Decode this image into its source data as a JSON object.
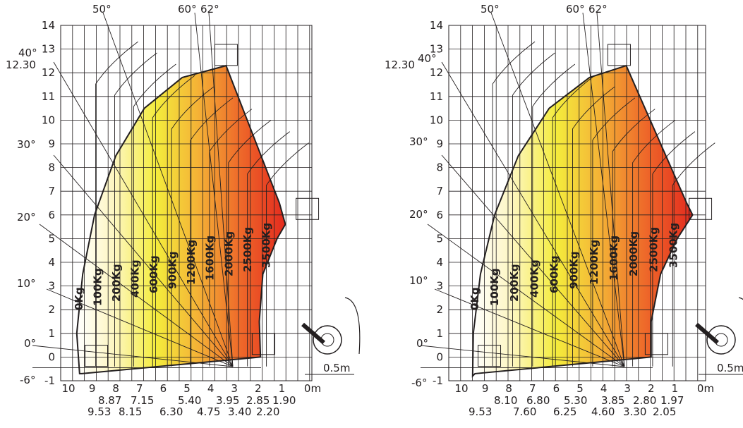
{
  "chart_data": [
    {
      "type": "load_chart",
      "title": "",
      "x_unit_label": "0m",
      "y_unit_label": "",
      "xlim": [
        0,
        10.8
      ],
      "ylim": [
        -1,
        14
      ],
      "x_ticks": [
        "10",
        "9",
        "8",
        "7",
        "6",
        "5",
        "4",
        "3",
        "2",
        "1"
      ],
      "y_ticks": [
        "14",
        "13",
        "12",
        "11",
        "10",
        "9",
        "8",
        "7",
        "6",
        "5",
        "4",
        "3",
        "2",
        "1",
        "0",
        "-1"
      ],
      "max_height_label": "12.30",
      "angle_labels": [
        "50°",
        "60°",
        "62°",
        "40°",
        "30°",
        "20°",
        "10°",
        "0°",
        "-6°"
      ],
      "scale_label": "0.5m",
      "reach_row1": [
        "8.87",
        "7.15",
        "5.40",
        "3.95",
        "2.85",
        "1.90"
      ],
      "reach_row2": [
        "9.53",
        "8.15",
        "6.30",
        "4.75",
        "3.40",
        "2.20"
      ],
      "capacities": [
        "0Kg",
        "100Kg",
        "200Kg",
        "400Kg",
        "600Kg",
        "900Kg",
        "1200Kg",
        "1600Kg",
        "2000Kg",
        "2500Kg",
        "3500Kg"
      ],
      "reach_outer": [
        {
          "x": 9.53,
          "y": -0.7
        },
        {
          "x": 9.65,
          "y": 1.0
        },
        {
          "x": 9.4,
          "y": 3.5
        },
        {
          "x": 8.9,
          "y": 6.0
        },
        {
          "x": 8.0,
          "y": 8.5
        },
        {
          "x": 6.8,
          "y": 10.5
        },
        {
          "x": 5.2,
          "y": 11.8
        },
        {
          "x": 3.35,
          "y": 12.3
        }
      ],
      "reach_inner": [
        {
          "x": 3.35,
          "y": 12.3
        },
        {
          "x": 1.1,
          "y": 6.5
        },
        {
          "x": 0.85,
          "y": 5.6
        },
        {
          "x": 1.2,
          "y": 5.0
        },
        {
          "x": 1.8,
          "y": 3.5
        },
        {
          "x": 1.95,
          "y": 1.5
        },
        {
          "x": 1.9,
          "y": 0.0
        }
      ]
    },
    {
      "type": "load_chart",
      "title": "",
      "x_unit_label": "0m",
      "y_unit_label": "",
      "xlim": [
        0,
        10.8
      ],
      "ylim": [
        -1,
        14
      ],
      "x_ticks": [
        "10",
        "9",
        "8",
        "7",
        "6",
        "5",
        "4",
        "3",
        "2",
        "1"
      ],
      "y_ticks": [
        "14",
        "13",
        "12",
        "11",
        "10",
        "9",
        "8",
        "7",
        "6",
        "5",
        "4",
        "3",
        "2",
        "1",
        "0",
        "-1"
      ],
      "max_height_label": "12.30",
      "angle_labels": [
        "50°",
        "60°",
        "62°",
        "40°",
        "30°",
        "20°",
        "10°",
        "0°",
        "-6°"
      ],
      "scale_label": "0.5m",
      "reach_row1": [
        "8.10",
        "6.80",
        "5.30",
        "3.85",
        "2.80",
        "1.97"
      ],
      "reach_row2": [
        "9.53",
        "7.60",
        "6.25",
        "4.60",
        "3.30",
        "2.05"
      ],
      "capacities": [
        "0Kg",
        "100Kg",
        "200Kg",
        "400Kg",
        "600Kg",
        "900Kg",
        "1200Kg",
        "1600Kg",
        "2000Kg",
        "2500Kg",
        "3500Kg"
      ],
      "reach_outer": [
        {
          "x": 9.53,
          "y": -0.8
        },
        {
          "x": 9.5,
          "y": 1.0
        },
        {
          "x": 9.2,
          "y": 3.5
        },
        {
          "x": 8.6,
          "y": 6.0
        },
        {
          "x": 7.6,
          "y": 8.5
        },
        {
          "x": 6.3,
          "y": 10.5
        },
        {
          "x": 4.6,
          "y": 11.8
        },
        {
          "x": 3.05,
          "y": 12.3
        }
      ],
      "reach_inner": [
        {
          "x": 3.05,
          "y": 12.3
        },
        {
          "x": 0.5,
          "y": 6.5
        },
        {
          "x": 0.25,
          "y": 6.0
        },
        {
          "x": 0.9,
          "y": 5.0
        },
        {
          "x": 1.6,
          "y": 3.5
        },
        {
          "x": 2.0,
          "y": 1.5
        },
        {
          "x": 2.0,
          "y": 0.0
        }
      ]
    }
  ]
}
